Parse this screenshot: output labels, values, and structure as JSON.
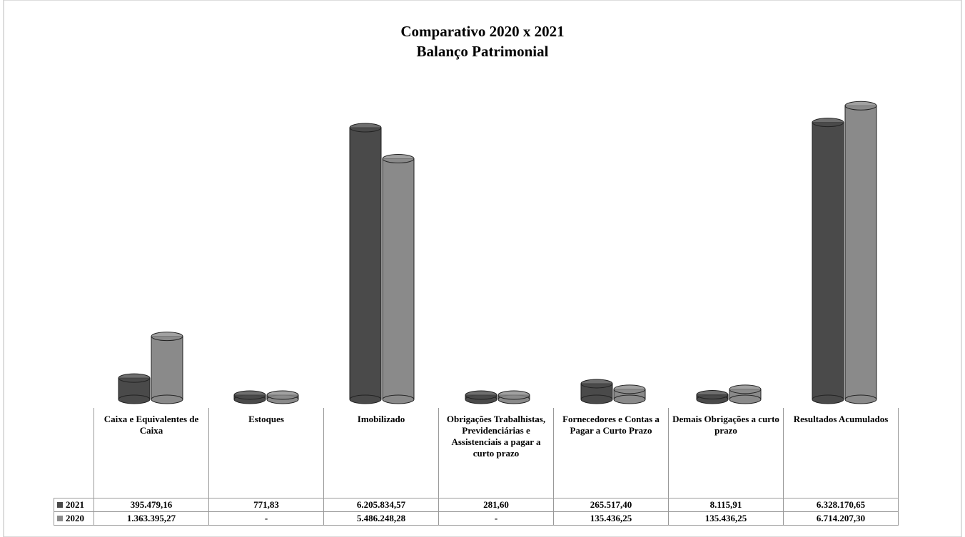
{
  "chart_data": {
    "type": "bar",
    "title": "Comparativo 2020 x 2021",
    "subtitle": "Balanço Patrimonial",
    "categories": [
      "Caixa e Equivalentes de Caixa",
      "Estoques",
      "Imobilizado",
      "Obrigações Trabalhistas, Previdenciárias e Assistenciais a pagar a curto prazo",
      "Fornecedores e Contas a Pagar a Curto Prazo",
      "Demais Obrigações a curto prazo",
      "Resultados Acumulados"
    ],
    "series": [
      {
        "name": "2021",
        "color": "#4a4a4a",
        "values": [
          395479.16,
          771.83,
          6205834.57,
          281.6,
          265517.4,
          8115.91,
          6328170.65
        ],
        "value_labels": [
          "395.479,16",
          "771,83",
          "6.205.834,57",
          "281,60",
          "265.517,40",
          "8.115,91",
          "6.328.170,65"
        ]
      },
      {
        "name": "2020",
        "color": "#8a8a8a",
        "values": [
          1363395.27,
          0,
          5486248.28,
          0,
          135436.25,
          135436.25,
          6714207.3
        ],
        "value_labels": [
          "1.363.395,27",
          "-",
          "5.486.248,28",
          "-",
          "135.436,25",
          "135.436,25",
          "6.714.207,30"
        ]
      }
    ],
    "ylim": [
      0,
      7000000
    ]
  }
}
